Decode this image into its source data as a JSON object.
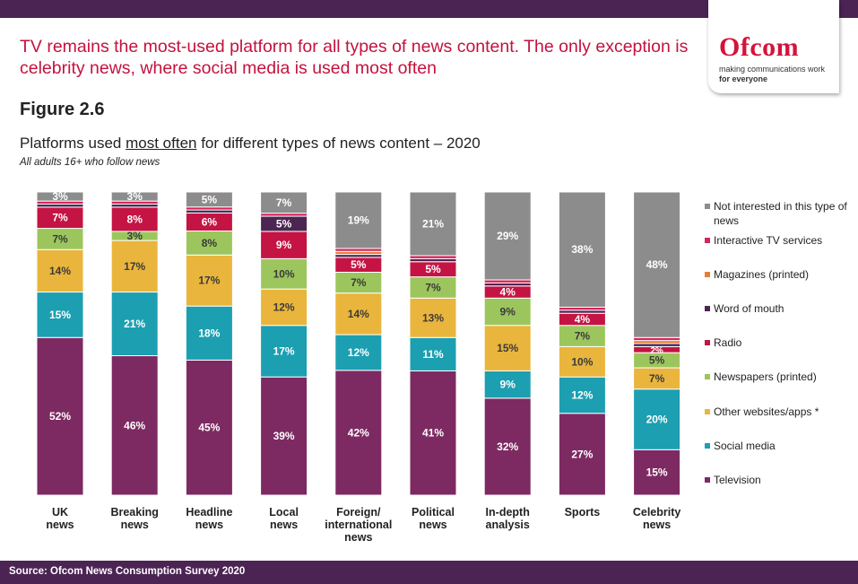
{
  "header": {
    "headline": "TV remains the most-used platform for all types of news content. The only exception is celebrity news, where social media is used most often",
    "figure_label": "Figure 2.6",
    "logo_word": "Ofcom",
    "logo_tagline_1": "making communications work",
    "logo_tagline_2": "for everyone"
  },
  "footer": {
    "source": "Source: Ofcom News Consumption Survey 2020"
  },
  "chart_data": {
    "type": "bar",
    "stacked": true,
    "percent_stacked": true,
    "title_pre": "Platforms used ",
    "title_underlined": "most often",
    "title_post": " for different types of news content – 2020",
    "subtitle": "All adults 16+ who follow news",
    "legend_position": "right",
    "categories": [
      [
        "UK",
        "news"
      ],
      [
        "Breaking",
        "news"
      ],
      [
        "Headline",
        "news"
      ],
      [
        "Local",
        "news"
      ],
      [
        "Foreign/",
        "international",
        "news"
      ],
      [
        "Political",
        "news"
      ],
      [
        "In-depth",
        "analysis"
      ],
      [
        "Sports"
      ],
      [
        "Celebrity",
        "news"
      ]
    ],
    "series": [
      {
        "name": "Television",
        "color": "#7d2a62",
        "values": [
          52,
          46,
          45,
          39,
          42,
          41,
          32,
          27,
          15
        ]
      },
      {
        "name": "Social media",
        "color": "#1c9fb1",
        "values": [
          15,
          21,
          18,
          17,
          12,
          11,
          9,
          12,
          20
        ]
      },
      {
        "name": "Other websites/apps  *",
        "color": "#eab53c",
        "values": [
          14,
          17,
          17,
          12,
          14,
          13,
          15,
          10,
          7
        ]
      },
      {
        "name": "Newspapers (printed)",
        "color": "#9cc65d",
        "values": [
          7,
          3,
          8,
          10,
          7,
          7,
          9,
          7,
          5
        ]
      },
      {
        "name": "Radio",
        "color": "#c41443",
        "values": [
          7,
          8,
          6,
          9,
          5,
          5,
          4,
          4,
          2
        ]
      },
      {
        "name": "Word of mouth",
        "color": "#4d2552",
        "values": [
          1,
          1,
          1,
          5,
          1,
          1,
          1,
          1,
          1
        ]
      },
      {
        "name": "Magazines (printed)",
        "color": "#e67e3a",
        "values": [
          0,
          0,
          0,
          0,
          1,
          0,
          0,
          0,
          1
        ]
      },
      {
        "name": "Interactive TV services",
        "color": "#d6245a",
        "values": [
          1,
          1,
          1,
          1,
          1,
          1,
          1,
          1,
          1
        ]
      },
      {
        "name": "Not interested in this type of news",
        "color": "#8c8c8c",
        "values": [
          3,
          3,
          5,
          7,
          19,
          21,
          29,
          38,
          48
        ]
      }
    ],
    "legend_order": [
      "Not interested in this type of news",
      "Interactive TV services",
      "Magazines (printed)",
      "Word of mouth",
      "Radio",
      "Newspapers (printed)",
      "Other websites/apps  *",
      "Social media",
      "Television"
    ],
    "ylim": [
      0,
      100
    ]
  }
}
